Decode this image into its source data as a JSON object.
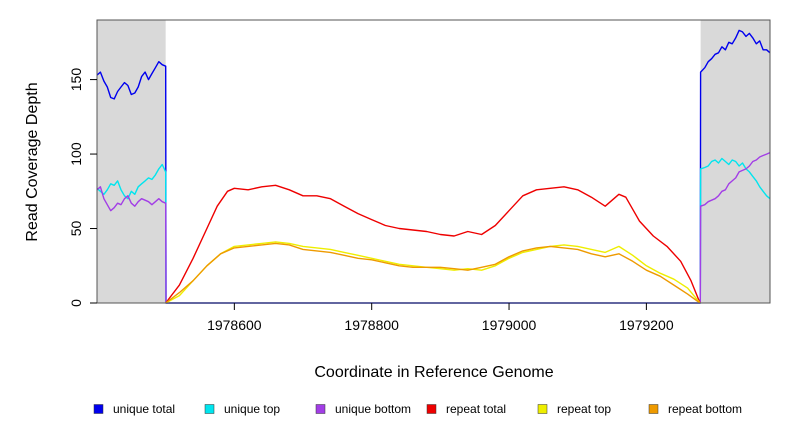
{
  "chart_data": {
    "type": "line",
    "title": "",
    "xlabel": "Coordinate in Reference Genome",
    "ylabel": "Read Coverage Depth",
    "xlim": [
      1978400,
      1979380
    ],
    "ylim": [
      0,
      190
    ],
    "x_ticks": [
      {
        "value": 1978600,
        "label": "1978600"
      },
      {
        "value": 1978800,
        "label": "1978800"
      },
      {
        "value": 1979000,
        "label": "1979000"
      },
      {
        "value": 1979200,
        "label": "1979200"
      }
    ],
    "y_ticks": [
      {
        "value": 0,
        "label": "0"
      },
      {
        "value": 50,
        "label": "50"
      },
      {
        "value": 100,
        "label": "100"
      },
      {
        "value": 150,
        "label": "150"
      }
    ],
    "grid": false,
    "legend_position": "bottom",
    "shaded_regions": [
      {
        "x": [
          1978400,
          1978500
        ],
        "color": "#d9d9d9"
      },
      {
        "x": [
          1979279,
          1979380
        ],
        "color": "#d9d9d9"
      }
    ],
    "series": [
      {
        "name": "unique total",
        "color": "#0000ee",
        "points": [
          [
            1978400,
            153
          ],
          [
            1978405,
            155
          ],
          [
            1978410,
            149
          ],
          [
            1978415,
            145
          ],
          [
            1978420,
            138
          ],
          [
            1978425,
            137
          ],
          [
            1978430,
            142
          ],
          [
            1978435,
            145
          ],
          [
            1978440,
            148
          ],
          [
            1978445,
            146
          ],
          [
            1978450,
            140
          ],
          [
            1978455,
            141
          ],
          [
            1978460,
            145
          ],
          [
            1978465,
            152
          ],
          [
            1978470,
            155
          ],
          [
            1978475,
            150
          ],
          [
            1978480,
            154
          ],
          [
            1978485,
            158
          ],
          [
            1978490,
            162
          ],
          [
            1978495,
            160
          ],
          [
            1978500,
            159
          ],
          [
            1978500.5,
            0
          ],
          [
            1979278.5,
            0
          ],
          [
            1979279,
            155
          ],
          [
            1979285,
            158
          ],
          [
            1979290,
            162
          ],
          [
            1979295,
            164
          ],
          [
            1979300,
            167
          ],
          [
            1979305,
            168
          ],
          [
            1979310,
            172
          ],
          [
            1979315,
            170
          ],
          [
            1979320,
            175
          ],
          [
            1979325,
            174
          ],
          [
            1979330,
            178
          ],
          [
            1979335,
            183
          ],
          [
            1979340,
            182
          ],
          [
            1979345,
            179
          ],
          [
            1979350,
            181
          ],
          [
            1979355,
            178
          ],
          [
            1979360,
            174
          ],
          [
            1979365,
            176
          ],
          [
            1979370,
            170
          ],
          [
            1979375,
            170
          ],
          [
            1979380,
            168
          ]
        ]
      },
      {
        "name": "unique top",
        "color": "#00e5ee",
        "points": [
          [
            1978400,
            77
          ],
          [
            1978405,
            75
          ],
          [
            1978410,
            73
          ],
          [
            1978415,
            76
          ],
          [
            1978420,
            80
          ],
          [
            1978425,
            79
          ],
          [
            1978430,
            82
          ],
          [
            1978435,
            76
          ],
          [
            1978440,
            72
          ],
          [
            1978445,
            70
          ],
          [
            1978450,
            75
          ],
          [
            1978455,
            73
          ],
          [
            1978460,
            78
          ],
          [
            1978465,
            80
          ],
          [
            1978470,
            82
          ],
          [
            1978475,
            84
          ],
          [
            1978480,
            83
          ],
          [
            1978485,
            86
          ],
          [
            1978490,
            90
          ],
          [
            1978495,
            93
          ],
          [
            1978500,
            88
          ],
          [
            1978500.5,
            0
          ],
          [
            1979278.5,
            0
          ],
          [
            1979279,
            90
          ],
          [
            1979285,
            91
          ],
          [
            1979290,
            92
          ],
          [
            1979295,
            95
          ],
          [
            1979300,
            96
          ],
          [
            1979305,
            94
          ],
          [
            1979310,
            97
          ],
          [
            1979315,
            95
          ],
          [
            1979320,
            93
          ],
          [
            1979325,
            96
          ],
          [
            1979330,
            95
          ],
          [
            1979335,
            92
          ],
          [
            1979340,
            94
          ],
          [
            1979345,
            90
          ],
          [
            1979350,
            88
          ],
          [
            1979355,
            85
          ],
          [
            1979360,
            82
          ],
          [
            1979365,
            78
          ],
          [
            1979370,
            75
          ],
          [
            1979375,
            72
          ],
          [
            1979380,
            70
          ]
        ]
      },
      {
        "name": "unique bottom",
        "color": "#a23ee6",
        "points": [
          [
            1978400,
            76
          ],
          [
            1978405,
            78
          ],
          [
            1978410,
            70
          ],
          [
            1978415,
            66
          ],
          [
            1978420,
            62
          ],
          [
            1978425,
            64
          ],
          [
            1978430,
            67
          ],
          [
            1978435,
            66
          ],
          [
            1978440,
            70
          ],
          [
            1978445,
            72
          ],
          [
            1978450,
            67
          ],
          [
            1978455,
            65
          ],
          [
            1978460,
            68
          ],
          [
            1978465,
            70
          ],
          [
            1978470,
            69
          ],
          [
            1978475,
            68
          ],
          [
            1978480,
            66
          ],
          [
            1978485,
            68
          ],
          [
            1978490,
            70
          ],
          [
            1978495,
            68
          ],
          [
            1978500,
            67
          ],
          [
            1978500.5,
            0
          ],
          [
            1979278.5,
            0
          ],
          [
            1979279,
            65
          ],
          [
            1979285,
            66
          ],
          [
            1979290,
            68
          ],
          [
            1979295,
            69
          ],
          [
            1979300,
            70
          ],
          [
            1979305,
            72
          ],
          [
            1979310,
            75
          ],
          [
            1979315,
            76
          ],
          [
            1979320,
            80
          ],
          [
            1979325,
            82
          ],
          [
            1979330,
            84
          ],
          [
            1979335,
            88
          ],
          [
            1979340,
            89
          ],
          [
            1979345,
            90
          ],
          [
            1979350,
            92
          ],
          [
            1979355,
            95
          ],
          [
            1979360,
            96
          ],
          [
            1979365,
            98
          ],
          [
            1979370,
            99
          ],
          [
            1979375,
            100
          ],
          [
            1979380,
            101
          ]
        ]
      },
      {
        "name": "repeat total",
        "color": "#ee0000",
        "points": [
          [
            1978500,
            0
          ],
          [
            1978520,
            12
          ],
          [
            1978540,
            30
          ],
          [
            1978560,
            50
          ],
          [
            1978575,
            65
          ],
          [
            1978590,
            75
          ],
          [
            1978600,
            77
          ],
          [
            1978620,
            76
          ],
          [
            1978640,
            78
          ],
          [
            1978660,
            79
          ],
          [
            1978680,
            76
          ],
          [
            1978700,
            72
          ],
          [
            1978720,
            72
          ],
          [
            1978740,
            70
          ],
          [
            1978760,
            65
          ],
          [
            1978780,
            60
          ],
          [
            1978800,
            56
          ],
          [
            1978820,
            52
          ],
          [
            1978840,
            50
          ],
          [
            1978860,
            49
          ],
          [
            1978880,
            48
          ],
          [
            1978900,
            46
          ],
          [
            1978920,
            45
          ],
          [
            1978940,
            48
          ],
          [
            1978960,
            46
          ],
          [
            1978980,
            52
          ],
          [
            1979000,
            62
          ],
          [
            1979020,
            72
          ],
          [
            1979040,
            76
          ],
          [
            1979060,
            77
          ],
          [
            1979080,
            78
          ],
          [
            1979100,
            76
          ],
          [
            1979120,
            71
          ],
          [
            1979140,
            65
          ],
          [
            1979160,
            73
          ],
          [
            1979170,
            71
          ],
          [
            1979190,
            55
          ],
          [
            1979210,
            45
          ],
          [
            1979230,
            38
          ],
          [
            1979250,
            28
          ],
          [
            1979265,
            15
          ],
          [
            1979278,
            0
          ]
        ]
      },
      {
        "name": "repeat top",
        "color": "#eeee00",
        "points": [
          [
            1978500,
            0
          ],
          [
            1978520,
            5
          ],
          [
            1978540,
            15
          ],
          [
            1978560,
            25
          ],
          [
            1978580,
            33
          ],
          [
            1978600,
            38
          ],
          [
            1978620,
            39
          ],
          [
            1978640,
            40
          ],
          [
            1978660,
            41
          ],
          [
            1978680,
            40
          ],
          [
            1978700,
            38
          ],
          [
            1978720,
            37
          ],
          [
            1978740,
            36
          ],
          [
            1978760,
            34
          ],
          [
            1978780,
            32
          ],
          [
            1978800,
            30
          ],
          [
            1978820,
            28
          ],
          [
            1978840,
            26
          ],
          [
            1978860,
            25
          ],
          [
            1978880,
            24
          ],
          [
            1978900,
            23
          ],
          [
            1978920,
            22
          ],
          [
            1978940,
            23
          ],
          [
            1978960,
            22
          ],
          [
            1978980,
            25
          ],
          [
            1979000,
            30
          ],
          [
            1979020,
            34
          ],
          [
            1979040,
            36
          ],
          [
            1979060,
            38
          ],
          [
            1979080,
            39
          ],
          [
            1979100,
            38
          ],
          [
            1979120,
            36
          ],
          [
            1979140,
            34
          ],
          [
            1979160,
            38
          ],
          [
            1979180,
            32
          ],
          [
            1979200,
            25
          ],
          [
            1979220,
            20
          ],
          [
            1979240,
            16
          ],
          [
            1979260,
            10
          ],
          [
            1979278,
            0
          ]
        ]
      },
      {
        "name": "repeat bottom",
        "color": "#ee9a00",
        "points": [
          [
            1978500,
            0
          ],
          [
            1978520,
            7
          ],
          [
            1978540,
            15
          ],
          [
            1978560,
            25
          ],
          [
            1978580,
            33
          ],
          [
            1978600,
            37
          ],
          [
            1978620,
            38
          ],
          [
            1978640,
            39
          ],
          [
            1978660,
            40
          ],
          [
            1978680,
            39
          ],
          [
            1978700,
            36
          ],
          [
            1978720,
            35
          ],
          [
            1978740,
            34
          ],
          [
            1978760,
            32
          ],
          [
            1978780,
            30
          ],
          [
            1978800,
            29
          ],
          [
            1978820,
            27
          ],
          [
            1978840,
            25
          ],
          [
            1978860,
            24
          ],
          [
            1978880,
            24
          ],
          [
            1978900,
            24
          ],
          [
            1978920,
            23
          ],
          [
            1978940,
            22
          ],
          [
            1978960,
            24
          ],
          [
            1978980,
            26
          ],
          [
            1979000,
            31
          ],
          [
            1979020,
            35
          ],
          [
            1979040,
            37
          ],
          [
            1979060,
            38
          ],
          [
            1979080,
            37
          ],
          [
            1979100,
            36
          ],
          [
            1979120,
            33
          ],
          [
            1979140,
            31
          ],
          [
            1979160,
            33
          ],
          [
            1979180,
            28
          ],
          [
            1979200,
            22
          ],
          [
            1979220,
            18
          ],
          [
            1979240,
            12
          ],
          [
            1979260,
            6
          ],
          [
            1979278,
            0
          ]
        ]
      }
    ]
  }
}
